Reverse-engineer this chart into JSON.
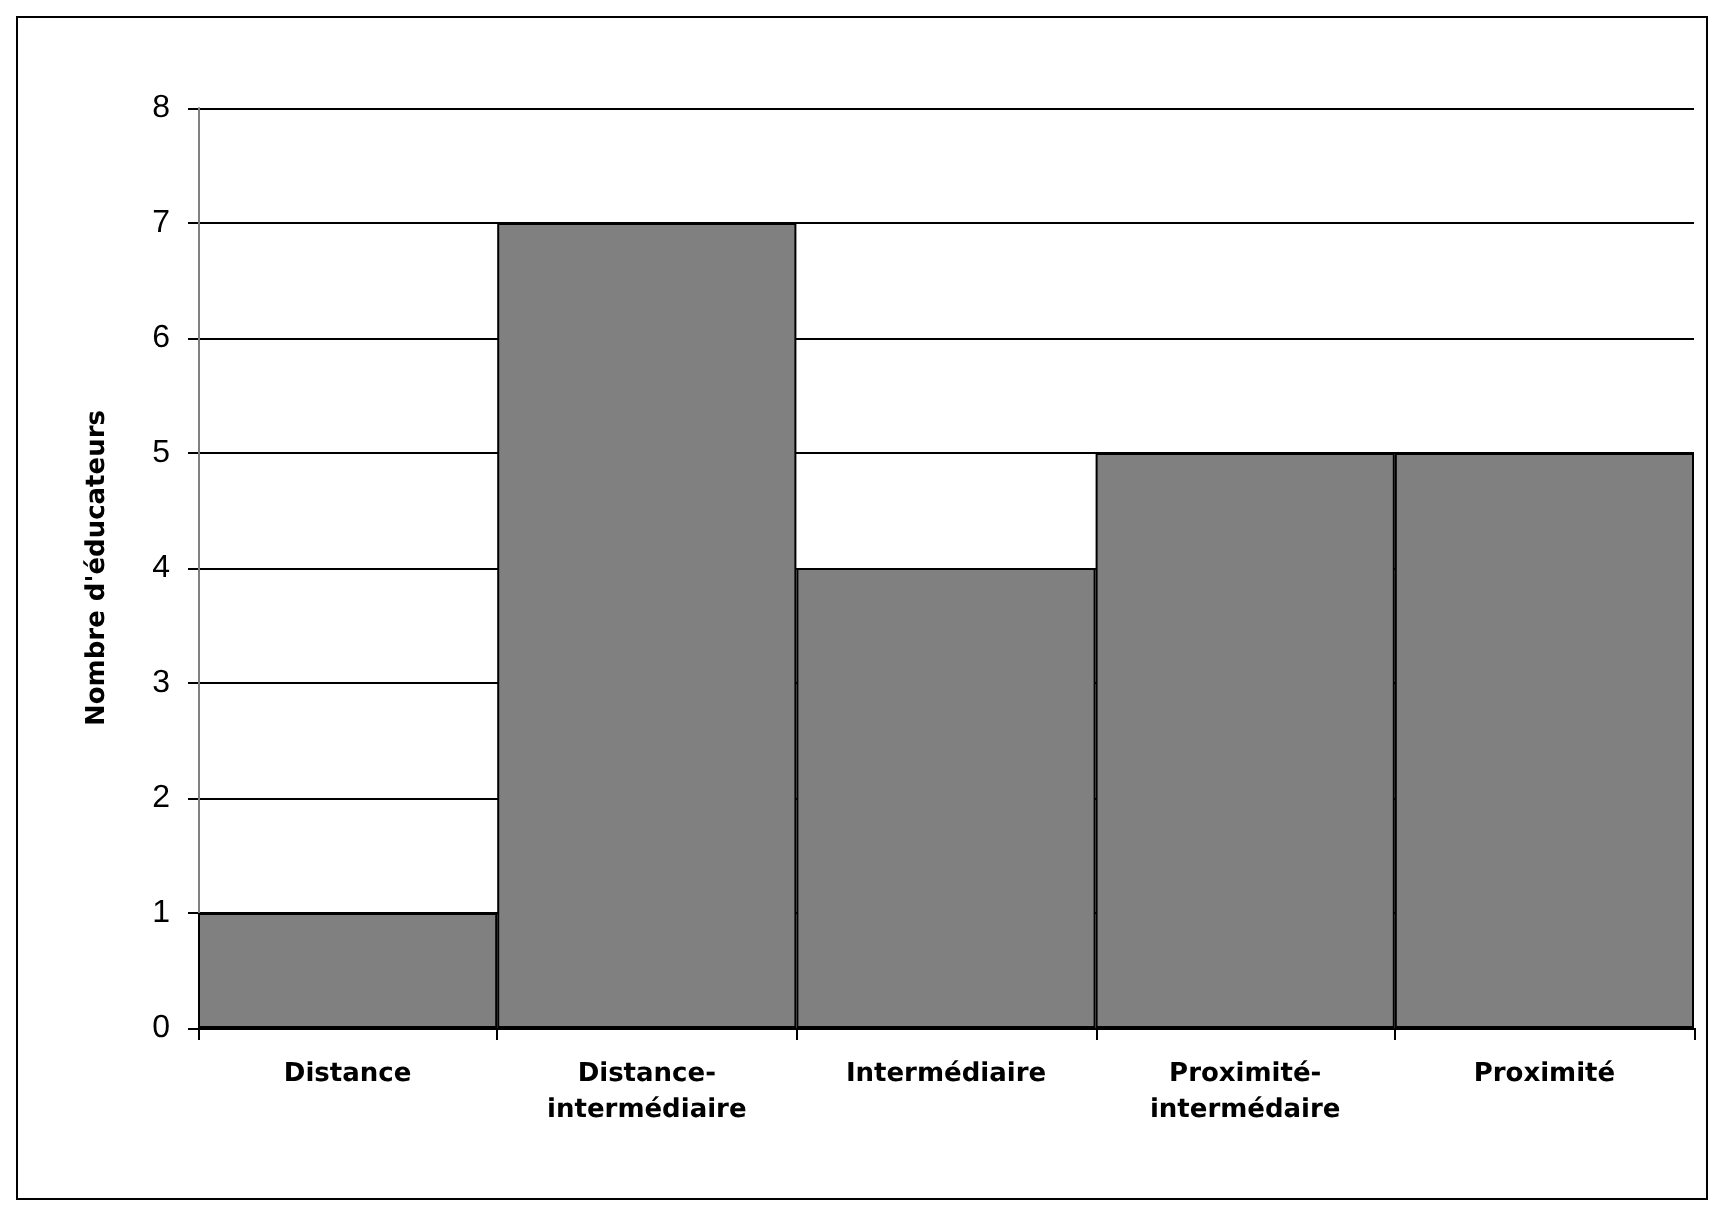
{
  "chart_data": {
    "type": "bar",
    "ylabel": "Nombre d'éducateurs",
    "categories": [
      "Distance",
      "Distance-intermédiaire",
      "Intermédiaire",
      "Proximité-intermédaire",
      "Proximité"
    ],
    "values": [
      1,
      7,
      4,
      5,
      5
    ],
    "color": "#808080",
    "ylim": [
      0,
      8
    ],
    "yticks": [
      0,
      1,
      2,
      3,
      4,
      5,
      6,
      7,
      8
    ],
    "grid": "y"
  }
}
